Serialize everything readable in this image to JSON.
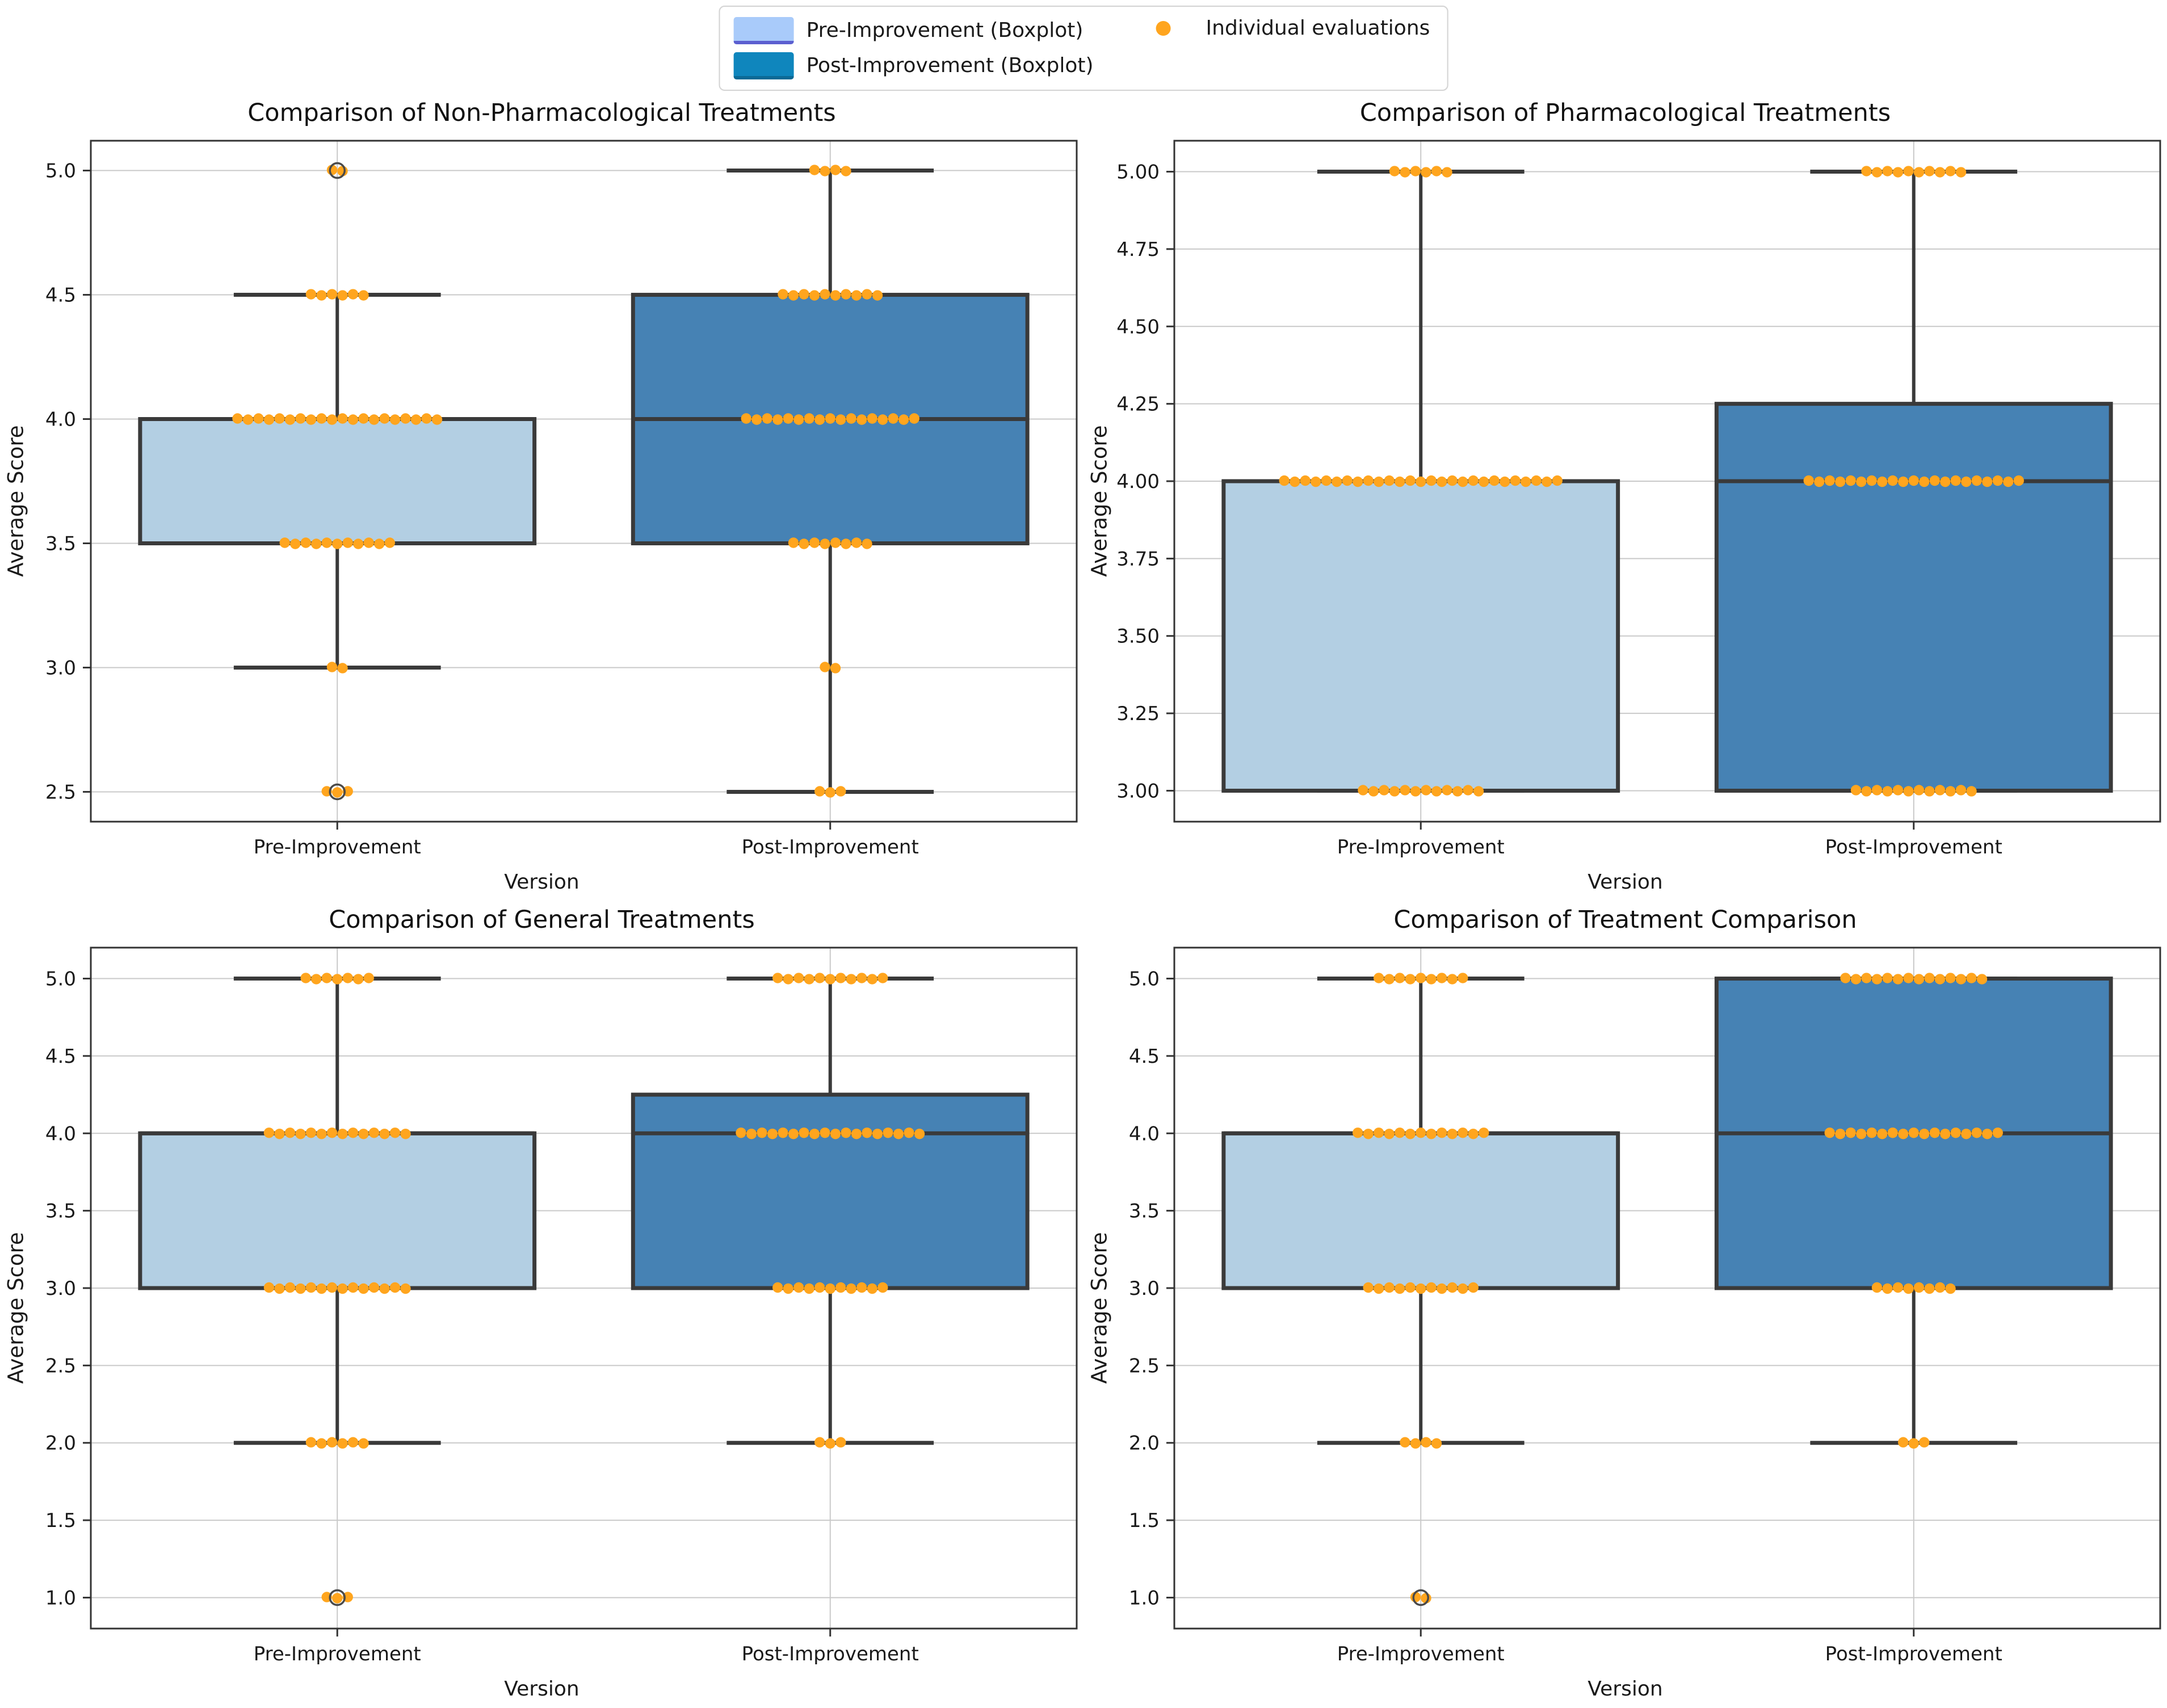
{
  "legend": {
    "items": [
      {
        "label": "Pre-Improvement (Boxplot)",
        "swatch": "pre"
      },
      {
        "label": "Post-Improvement (Boxplot)",
        "swatch": "post"
      },
      {
        "label": "Individual evaluations",
        "swatch": "dot"
      }
    ],
    "position": "top-center"
  },
  "style": {
    "pre_box_fill": "#b3cfe3",
    "post_box_fill": "#4682b4",
    "box_edge": "#3a3a3a",
    "whisker": "#3a3a3a",
    "dot": "#ffa51e",
    "flier_edge": "#4a4a4a",
    "grid": "#c9c9c9",
    "spine": "#333333",
    "tick_label_color": "#1a1a1a",
    "legend_pre_fill": "#a9cbfa",
    "legend_pre_edge": "#5b5fd0",
    "legend_post_fill": "#0f86bd"
  },
  "chart_data": [
    {
      "type": "boxplot",
      "title": "Comparison of Non-Pharmacological Treatments",
      "xlabel": "Version",
      "ylabel": "Average Score",
      "categories": [
        "Pre-Improvement",
        "Post-Improvement"
      ],
      "ylim": [
        2.38,
        5.12
      ],
      "ytick_labels": [
        "2.5",
        "3.0",
        "3.5",
        "4.0",
        "4.5",
        "5.0"
      ],
      "grid": true,
      "series": [
        {
          "name": "Pre-Improvement",
          "box": {
            "whisker_low": 3.0,
            "q1": 3.5,
            "median": 4.0,
            "q3": 4.0,
            "whisker_high": 4.5,
            "fliers": [
              5.0,
              2.5
            ]
          },
          "points": [
            {
              "value": 5.0,
              "count": 2
            },
            {
              "value": 4.5,
              "count": 6
            },
            {
              "value": 4.0,
              "count": 20
            },
            {
              "value": 3.5,
              "count": 11
            },
            {
              "value": 3.0,
              "count": 2
            },
            {
              "value": 2.5,
              "count": 3
            }
          ]
        },
        {
          "name": "Post-Improvement",
          "box": {
            "whisker_low": 2.5,
            "q1": 3.5,
            "median": 4.0,
            "q3": 4.5,
            "whisker_high": 5.0,
            "fliers": []
          },
          "points": [
            {
              "value": 5.0,
              "count": 4
            },
            {
              "value": 4.5,
              "count": 10
            },
            {
              "value": 4.0,
              "count": 17
            },
            {
              "value": 3.5,
              "count": 8
            },
            {
              "value": 3.0,
              "count": 2
            },
            {
              "value": 2.5,
              "count": 3
            }
          ]
        }
      ]
    },
    {
      "type": "boxplot",
      "title": "Comparison of Pharmacological Treatments",
      "xlabel": "Version",
      "ylabel": "Average Score",
      "categories": [
        "Pre-Improvement",
        "Post-Improvement"
      ],
      "ylim": [
        2.9,
        5.1
      ],
      "ytick_labels": [
        "3.00",
        "3.25",
        "3.50",
        "3.75",
        "4.00",
        "4.25",
        "4.50",
        "4.75",
        "5.00"
      ],
      "grid": true,
      "series": [
        {
          "name": "Pre-Improvement",
          "box": {
            "whisker_low": 3.0,
            "q1": 3.0,
            "median": 4.0,
            "q3": 4.0,
            "whisker_high": 5.0,
            "fliers": []
          },
          "points": [
            {
              "value": 5.0,
              "count": 6
            },
            {
              "value": 4.0,
              "count": 27
            },
            {
              "value": 3.0,
              "count": 12
            }
          ]
        },
        {
          "name": "Post-Improvement",
          "box": {
            "whisker_low": 3.0,
            "q1": 3.0,
            "median": 4.0,
            "q3": 4.25,
            "whisker_high": 5.0,
            "fliers": []
          },
          "points": [
            {
              "value": 5.0,
              "count": 10
            },
            {
              "value": 4.0,
              "count": 21
            },
            {
              "value": 3.0,
              "count": 12
            }
          ]
        }
      ]
    },
    {
      "type": "boxplot",
      "title": "Comparison of General Treatments",
      "xlabel": "Version",
      "ylabel": "Average Score",
      "categories": [
        "Pre-Improvement",
        "Post-Improvement"
      ],
      "ylim": [
        0.8,
        5.2
      ],
      "ytick_labels": [
        "1.0",
        "1.5",
        "2.0",
        "2.5",
        "3.0",
        "3.5",
        "4.0",
        "4.5",
        "5.0"
      ],
      "grid": true,
      "series": [
        {
          "name": "Pre-Improvement",
          "box": {
            "whisker_low": 2.0,
            "q1": 3.0,
            "median": 4.0,
            "q3": 4.0,
            "whisker_high": 5.0,
            "fliers": [
              1.0
            ]
          },
          "points": [
            {
              "value": 5.0,
              "count": 7
            },
            {
              "value": 4.0,
              "count": 14
            },
            {
              "value": 3.0,
              "count": 14
            },
            {
              "value": 2.0,
              "count": 6
            },
            {
              "value": 1.0,
              "count": 3
            }
          ]
        },
        {
          "name": "Post-Improvement",
          "box": {
            "whisker_low": 2.0,
            "q1": 3.0,
            "median": 4.0,
            "q3": 4.25,
            "whisker_high": 5.0,
            "fliers": []
          },
          "points": [
            {
              "value": 5.0,
              "count": 11
            },
            {
              "value": 4.0,
              "count": 18
            },
            {
              "value": 3.0,
              "count": 11
            },
            {
              "value": 2.0,
              "count": 3
            }
          ]
        }
      ]
    },
    {
      "type": "boxplot",
      "title": "Comparison of Treatment Comparison",
      "xlabel": "Version",
      "ylabel": "Average Score",
      "categories": [
        "Pre-Improvement",
        "Post-Improvement"
      ],
      "ylim": [
        0.8,
        5.2
      ],
      "ytick_labels": [
        "1.0",
        "1.5",
        "2.0",
        "2.5",
        "3.0",
        "3.5",
        "4.0",
        "4.5",
        "5.0"
      ],
      "grid": true,
      "series": [
        {
          "name": "Pre-Improvement",
          "box": {
            "whisker_low": 2.0,
            "q1": 3.0,
            "median": 4.0,
            "q3": 4.0,
            "whisker_high": 5.0,
            "fliers": [
              1.0
            ]
          },
          "points": [
            {
              "value": 5.0,
              "count": 9
            },
            {
              "value": 4.0,
              "count": 13
            },
            {
              "value": 3.0,
              "count": 11
            },
            {
              "value": 2.0,
              "count": 4
            },
            {
              "value": 1.0,
              "count": 2
            }
          ]
        },
        {
          "name": "Post-Improvement",
          "box": {
            "whisker_low": 2.0,
            "q1": 3.0,
            "median": 4.0,
            "q3": 5.0,
            "whisker_high": 5.0,
            "fliers": []
          },
          "points": [
            {
              "value": 5.0,
              "count": 14
            },
            {
              "value": 4.0,
              "count": 17
            },
            {
              "value": 3.0,
              "count": 8
            },
            {
              "value": 2.0,
              "count": 3
            }
          ]
        }
      ]
    }
  ]
}
